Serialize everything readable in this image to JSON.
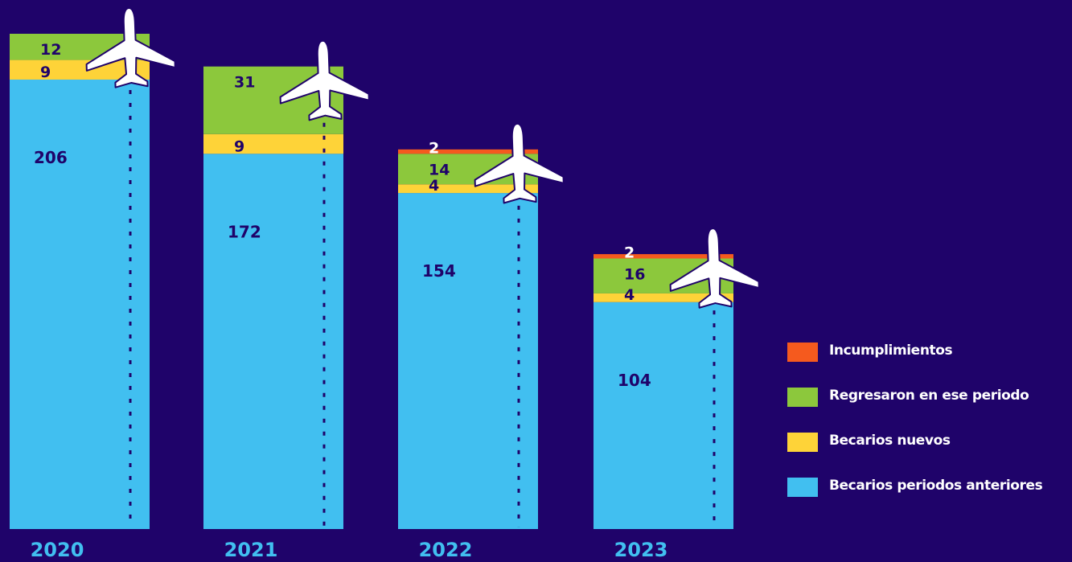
{
  "chart_data": {
    "type": "bar",
    "stacked": true,
    "categories": [
      "2020",
      "2021",
      "2022",
      "2023"
    ],
    "series": [
      {
        "name": "Becarios periodos anteriores",
        "color": "#41bff0",
        "values": [
          206,
          172,
          154,
          104
        ]
      },
      {
        "name": "Becarios nuevos",
        "color": "#fed338",
        "values": [
          9,
          9,
          4,
          4
        ]
      },
      {
        "name": "Regresaron en ese periodo",
        "color": "#8cc83c",
        "values": [
          12,
          31,
          14,
          16
        ]
      },
      {
        "name": "Incumplimientos",
        "color": "#f55a1e",
        "values": [
          0,
          0,
          2,
          2
        ]
      }
    ],
    "legend_order": [
      "Incumplimientos",
      "Regresaron en ese periodo",
      "Becarios nuevos",
      "Becarios periodos anteriores"
    ],
    "legend_position": "right",
    "background": "#1f036a",
    "label_color": "#1f036a",
    "category_label_color": "#41bff0",
    "decoration_icon": "airplane-icon",
    "grid": false
  }
}
